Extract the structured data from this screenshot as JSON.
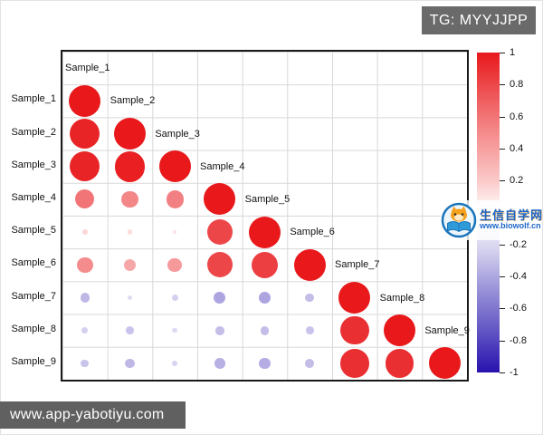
{
  "header": {
    "tag_label": "TG: MYYJJPP"
  },
  "footer": {
    "site_label": "www.app-yabotiyu.com"
  },
  "watermark": {
    "site_name": "生信自学网",
    "site_url": "www.biowolf.cn"
  },
  "chart_data": {
    "type": "heatmap",
    "subtype": "lower-triangle correlation matrix drawn as sized/colored circles (corrplot style)",
    "title": "",
    "labels": [
      "Sample_1",
      "Sample_2",
      "Sample_3",
      "Sample_4",
      "Sample_5",
      "Sample_6",
      "Sample_7",
      "Sample_8",
      "Sample_9"
    ],
    "matrix_lower_triangle": [
      [
        1
      ],
      [
        0.95,
        1
      ],
      [
        0.95,
        0.97,
        1
      ],
      [
        0.6,
        0.52,
        0.55,
        1
      ],
      [
        0.18,
        0.15,
        0.13,
        0.8,
        1
      ],
      [
        0.5,
        0.38,
        0.44,
        0.8,
        0.83,
        1
      ],
      [
        -0.3,
        -0.15,
        -0.2,
        -0.38,
        -0.38,
        -0.28,
        1
      ],
      [
        -0.2,
        -0.25,
        -0.16,
        -0.28,
        -0.28,
        -0.25,
        0.9,
        1
      ],
      [
        -0.25,
        -0.3,
        -0.18,
        -0.33,
        -0.35,
        -0.28,
        0.9,
        0.9,
        1
      ]
    ],
    "value_range": [
      -1,
      1
    ],
    "grid": true,
    "legend_position": "right",
    "colorbar": {
      "tick_labels": [
        "1",
        "0.8",
        "0.6",
        "0.4",
        "0.2",
        "0",
        "-0.2",
        "-0.4",
        "-0.6",
        "-0.8",
        "-1"
      ],
      "tick_values": [
        1,
        0.8,
        0.6,
        0.4,
        0.2,
        0,
        -0.2,
        -0.4,
        -0.6,
        -0.8,
        -1
      ],
      "max_color": "#e8181b",
      "mid_color": "#ffffff",
      "min_color": "#2812ae"
    }
  },
  "colors": {
    "positive": "#e8181b",
    "negative": "#2812ae",
    "grid_line": "#d8d8d8",
    "plot_border": "#1a1a1a",
    "badge_bg": "#6a6a6a",
    "footer_bg": "#606060",
    "watermark_blue": "#1f66c9"
  }
}
